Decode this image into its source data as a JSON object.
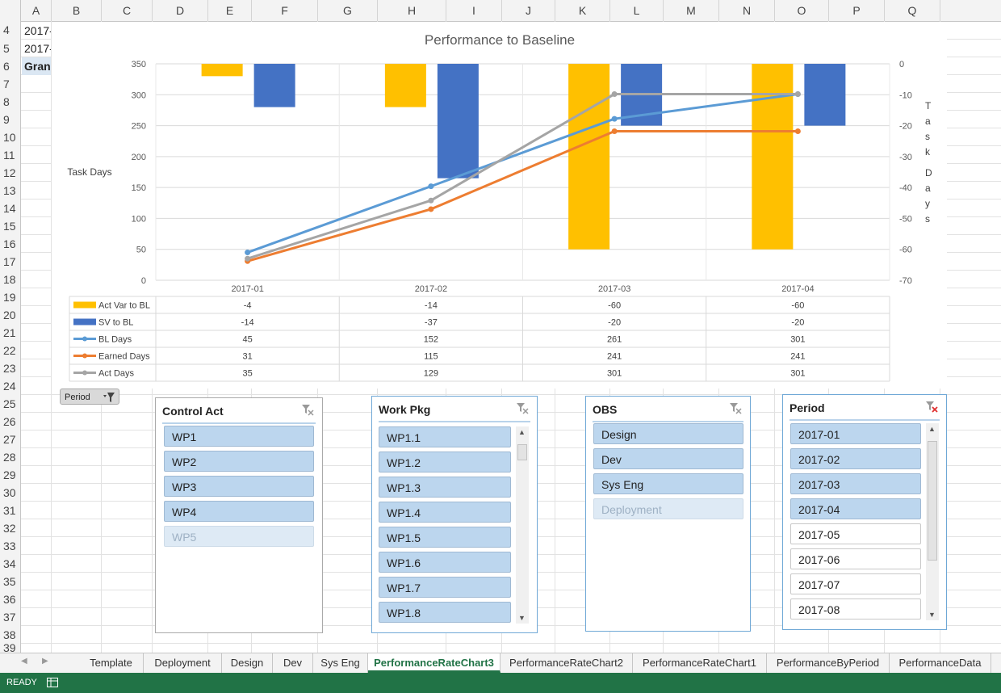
{
  "columns": [
    "A",
    "B",
    "C",
    "D",
    "E",
    "F",
    "G",
    "H",
    "I",
    "J",
    "K",
    "L",
    "M",
    "N",
    "O",
    "P",
    "Q"
  ],
  "rows": [
    "4",
    "5",
    "6",
    "7",
    "8",
    "9",
    "10",
    "11",
    "12",
    "13",
    "14",
    "15",
    "16",
    "17",
    "18",
    "19",
    "20",
    "21",
    "22",
    "23",
    "24",
    "25",
    "26",
    "27",
    "28",
    "29",
    "30",
    "31",
    "32",
    "33",
    "34",
    "35",
    "36",
    "37",
    "38",
    "39"
  ],
  "cells": {
    "a4": "2017-",
    "a5": "2017-",
    "a6": "Gran"
  },
  "period_button": {
    "label": "Period"
  },
  "chart_data": {
    "type": "bar",
    "title": "Performance to Baseline",
    "ylabel": "Task Days",
    "y2label": "Task Days",
    "ylim": [
      0,
      350
    ],
    "y2lim": [
      -70,
      0
    ],
    "yticks": [
      "350",
      "300",
      "250",
      "200",
      "150",
      "100",
      "50",
      "0"
    ],
    "y2ticks": [
      "0",
      "-10",
      "-20",
      "-30",
      "-40",
      "-50",
      "-60",
      "-70"
    ],
    "categories": [
      "2017-01",
      "2017-02",
      "2017-03",
      "2017-04"
    ],
    "bar_series": [
      {
        "name": "Act Var to BL",
        "values": [
          -4,
          -14,
          -60,
          -60
        ],
        "color": "#ffc000"
      },
      {
        "name": "SV to BL",
        "values": [
          -14,
          -37,
          -20,
          -20
        ],
        "color": "#4472c4"
      }
    ],
    "line_series": [
      {
        "name": "BL Days",
        "values": [
          45,
          152,
          261,
          301
        ],
        "color": "#5b9bd5"
      },
      {
        "name": "Earned Days",
        "values": [
          31,
          115,
          241,
          241
        ],
        "color": "#ed7d31"
      },
      {
        "name": "Act Days",
        "values": [
          35,
          129,
          301,
          301
        ],
        "color": "#a5a5a5"
      }
    ],
    "table_rows": [
      {
        "name": "Act Var to BL",
        "values": [
          "-4",
          "-14",
          "-60",
          "-60"
        ]
      },
      {
        "name": "SV to BL",
        "values": [
          "-14",
          "-37",
          "-20",
          "-20"
        ]
      },
      {
        "name": "BL Days",
        "values": [
          "45",
          "152",
          "261",
          "301"
        ]
      },
      {
        "name": "Earned Days",
        "values": [
          "31",
          "115",
          "241",
          "241"
        ]
      },
      {
        "name": "Act Days",
        "values": [
          "35",
          "129",
          "301",
          "301"
        ]
      }
    ]
  },
  "slicers": {
    "control_act": {
      "title": "Control Act",
      "items": [
        "WP1",
        "WP2",
        "WP3",
        "WP4",
        "WP5"
      ]
    },
    "work_pkg": {
      "title": "Work Pkg",
      "items": [
        "WP1.1",
        "WP1.2",
        "WP1.3",
        "WP1.4",
        "WP1.5",
        "WP1.6",
        "WP1.7",
        "WP1.8"
      ]
    },
    "obs": {
      "title": "OBS",
      "items": [
        "Design",
        "Dev",
        "Sys Eng",
        "Deployment"
      ]
    },
    "period": {
      "title": "Period",
      "items": [
        "2017-01",
        "2017-02",
        "2017-03",
        "2017-04",
        "2017-05",
        "2017-06",
        "2017-07",
        "2017-08"
      ]
    }
  },
  "tabs": [
    "Template",
    "Deployment",
    "Design",
    "Dev",
    "Sys Eng",
    "PerformanceRateChart3",
    "PerformanceRateChart2",
    "PerformanceRateChart1",
    "PerformanceByPeriod",
    "PerformanceData"
  ],
  "active_tab": "PerformanceRateChart3",
  "status": {
    "text": "READY"
  },
  "colors": {
    "accent": "#217346",
    "slicer_selected": "#bcd6ee"
  }
}
